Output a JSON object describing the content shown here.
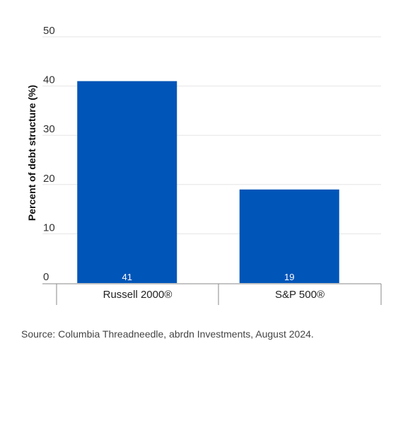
{
  "chart_data": {
    "type": "bar",
    "categories": [
      "Russell 2000®",
      "S&P 500®"
    ],
    "values": [
      41,
      19
    ],
    "data_labels": [
      "41",
      "19"
    ],
    "ylabel": "Percent of debt structure (%)",
    "ylim": [
      0,
      50
    ],
    "yticks": [
      0,
      10,
      20,
      30,
      40,
      50
    ],
    "grid": true,
    "bar_color": "#0055b8"
  },
  "source_note": "Source: Columbia Threadneedle, abrdn Investments, August 2024."
}
